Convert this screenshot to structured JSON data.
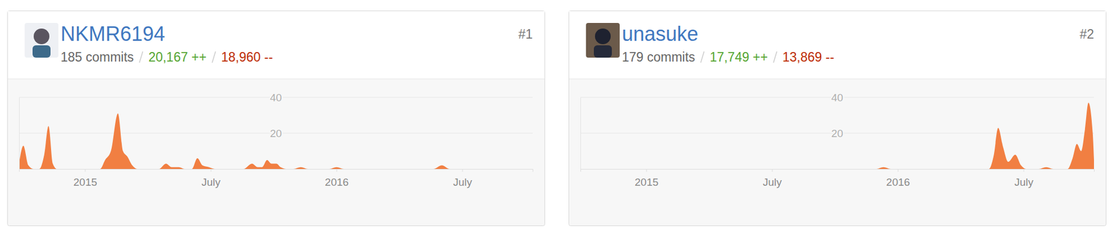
{
  "chart_data": [
    {
      "type": "area",
      "title": "NKMR6194",
      "rank": "#1",
      "commits": "185 commits",
      "additions": "20,167 ++",
      "deletions": "18,960 --",
      "color": "#f17f42",
      "grid": true,
      "x": [
        2014.738,
        2014.755,
        2014.775,
        2014.795,
        2014.818,
        2014.838,
        2014.855,
        2014.872,
        2014.889,
        2015.06,
        2015.08,
        2015.103,
        2015.131,
        2015.151,
        2015.168,
        2015.188,
        2015.208,
        2015.294,
        2015.322,
        2015.345,
        2015.373,
        2015.396,
        2015.425,
        2015.447,
        2015.467,
        2015.493,
        2015.516,
        2015.63,
        2015.664,
        2015.687,
        2015.704,
        2015.724,
        2015.741,
        2015.761,
        2015.778,
        2015.801,
        2015.829,
        2015.858,
        2015.886,
        2015.972,
        2016.0,
        2016.029,
        2016.385,
        2016.419,
        2016.45,
        2016.78
      ],
      "values": [
        3,
        13,
        2,
        0,
        0,
        8,
        24,
        3,
        0,
        0,
        5,
        10,
        31,
        10,
        7,
        2,
        0,
        0,
        3,
        1,
        1,
        0,
        0,
        6,
        2,
        1,
        0,
        0,
        3,
        1,
        1,
        5,
        3,
        3,
        1,
        0,
        0,
        1,
        0,
        0,
        1,
        0,
        0,
        2,
        0,
        0
      ],
      "xlim": [
        2014.738,
        2016.78
      ],
      "xticks": [
        {
          "value": 2015,
          "label": "2015"
        },
        {
          "value": 2015.5,
          "label": "July"
        },
        {
          "value": 2016,
          "label": "2016"
        },
        {
          "value": 2016.5,
          "label": "July"
        }
      ],
      "ylim": [
        0,
        40
      ],
      "yticks": [
        20,
        40
      ]
    },
    {
      "type": "area",
      "title": "unasuke",
      "rank": "#2",
      "commits": "179 commits",
      "additions": "17,749 ++",
      "deletions": "13,869 --",
      "color": "#f17f42",
      "grid": true,
      "x": [
        2014.738,
        2015.265,
        2015.915,
        2015.943,
        2015.972,
        2016.362,
        2016.382,
        2016.399,
        2016.419,
        2016.439,
        2016.467,
        2016.49,
        2016.51,
        2016.561,
        2016.59,
        2016.618,
        2016.675,
        2016.695,
        2016.712,
        2016.729,
        2016.744,
        2016.758,
        2016.775,
        2016.78
      ],
      "values": [
        0,
        0,
        0,
        1,
        0,
        0,
        8,
        23,
        12,
        4,
        8,
        2,
        0,
        0,
        1,
        0,
        0,
        6,
        14,
        10,
        22,
        37,
        20,
        5
      ],
      "xlim": [
        2014.738,
        2016.78
      ],
      "xticks": [
        {
          "value": 2015,
          "label": "2015"
        },
        {
          "value": 2015.5,
          "label": "July"
        },
        {
          "value": 2016,
          "label": "2016"
        },
        {
          "value": 2016.5,
          "label": "July"
        }
      ],
      "ylim": [
        0,
        40
      ],
      "yticks": [
        20,
        40
      ]
    }
  ]
}
